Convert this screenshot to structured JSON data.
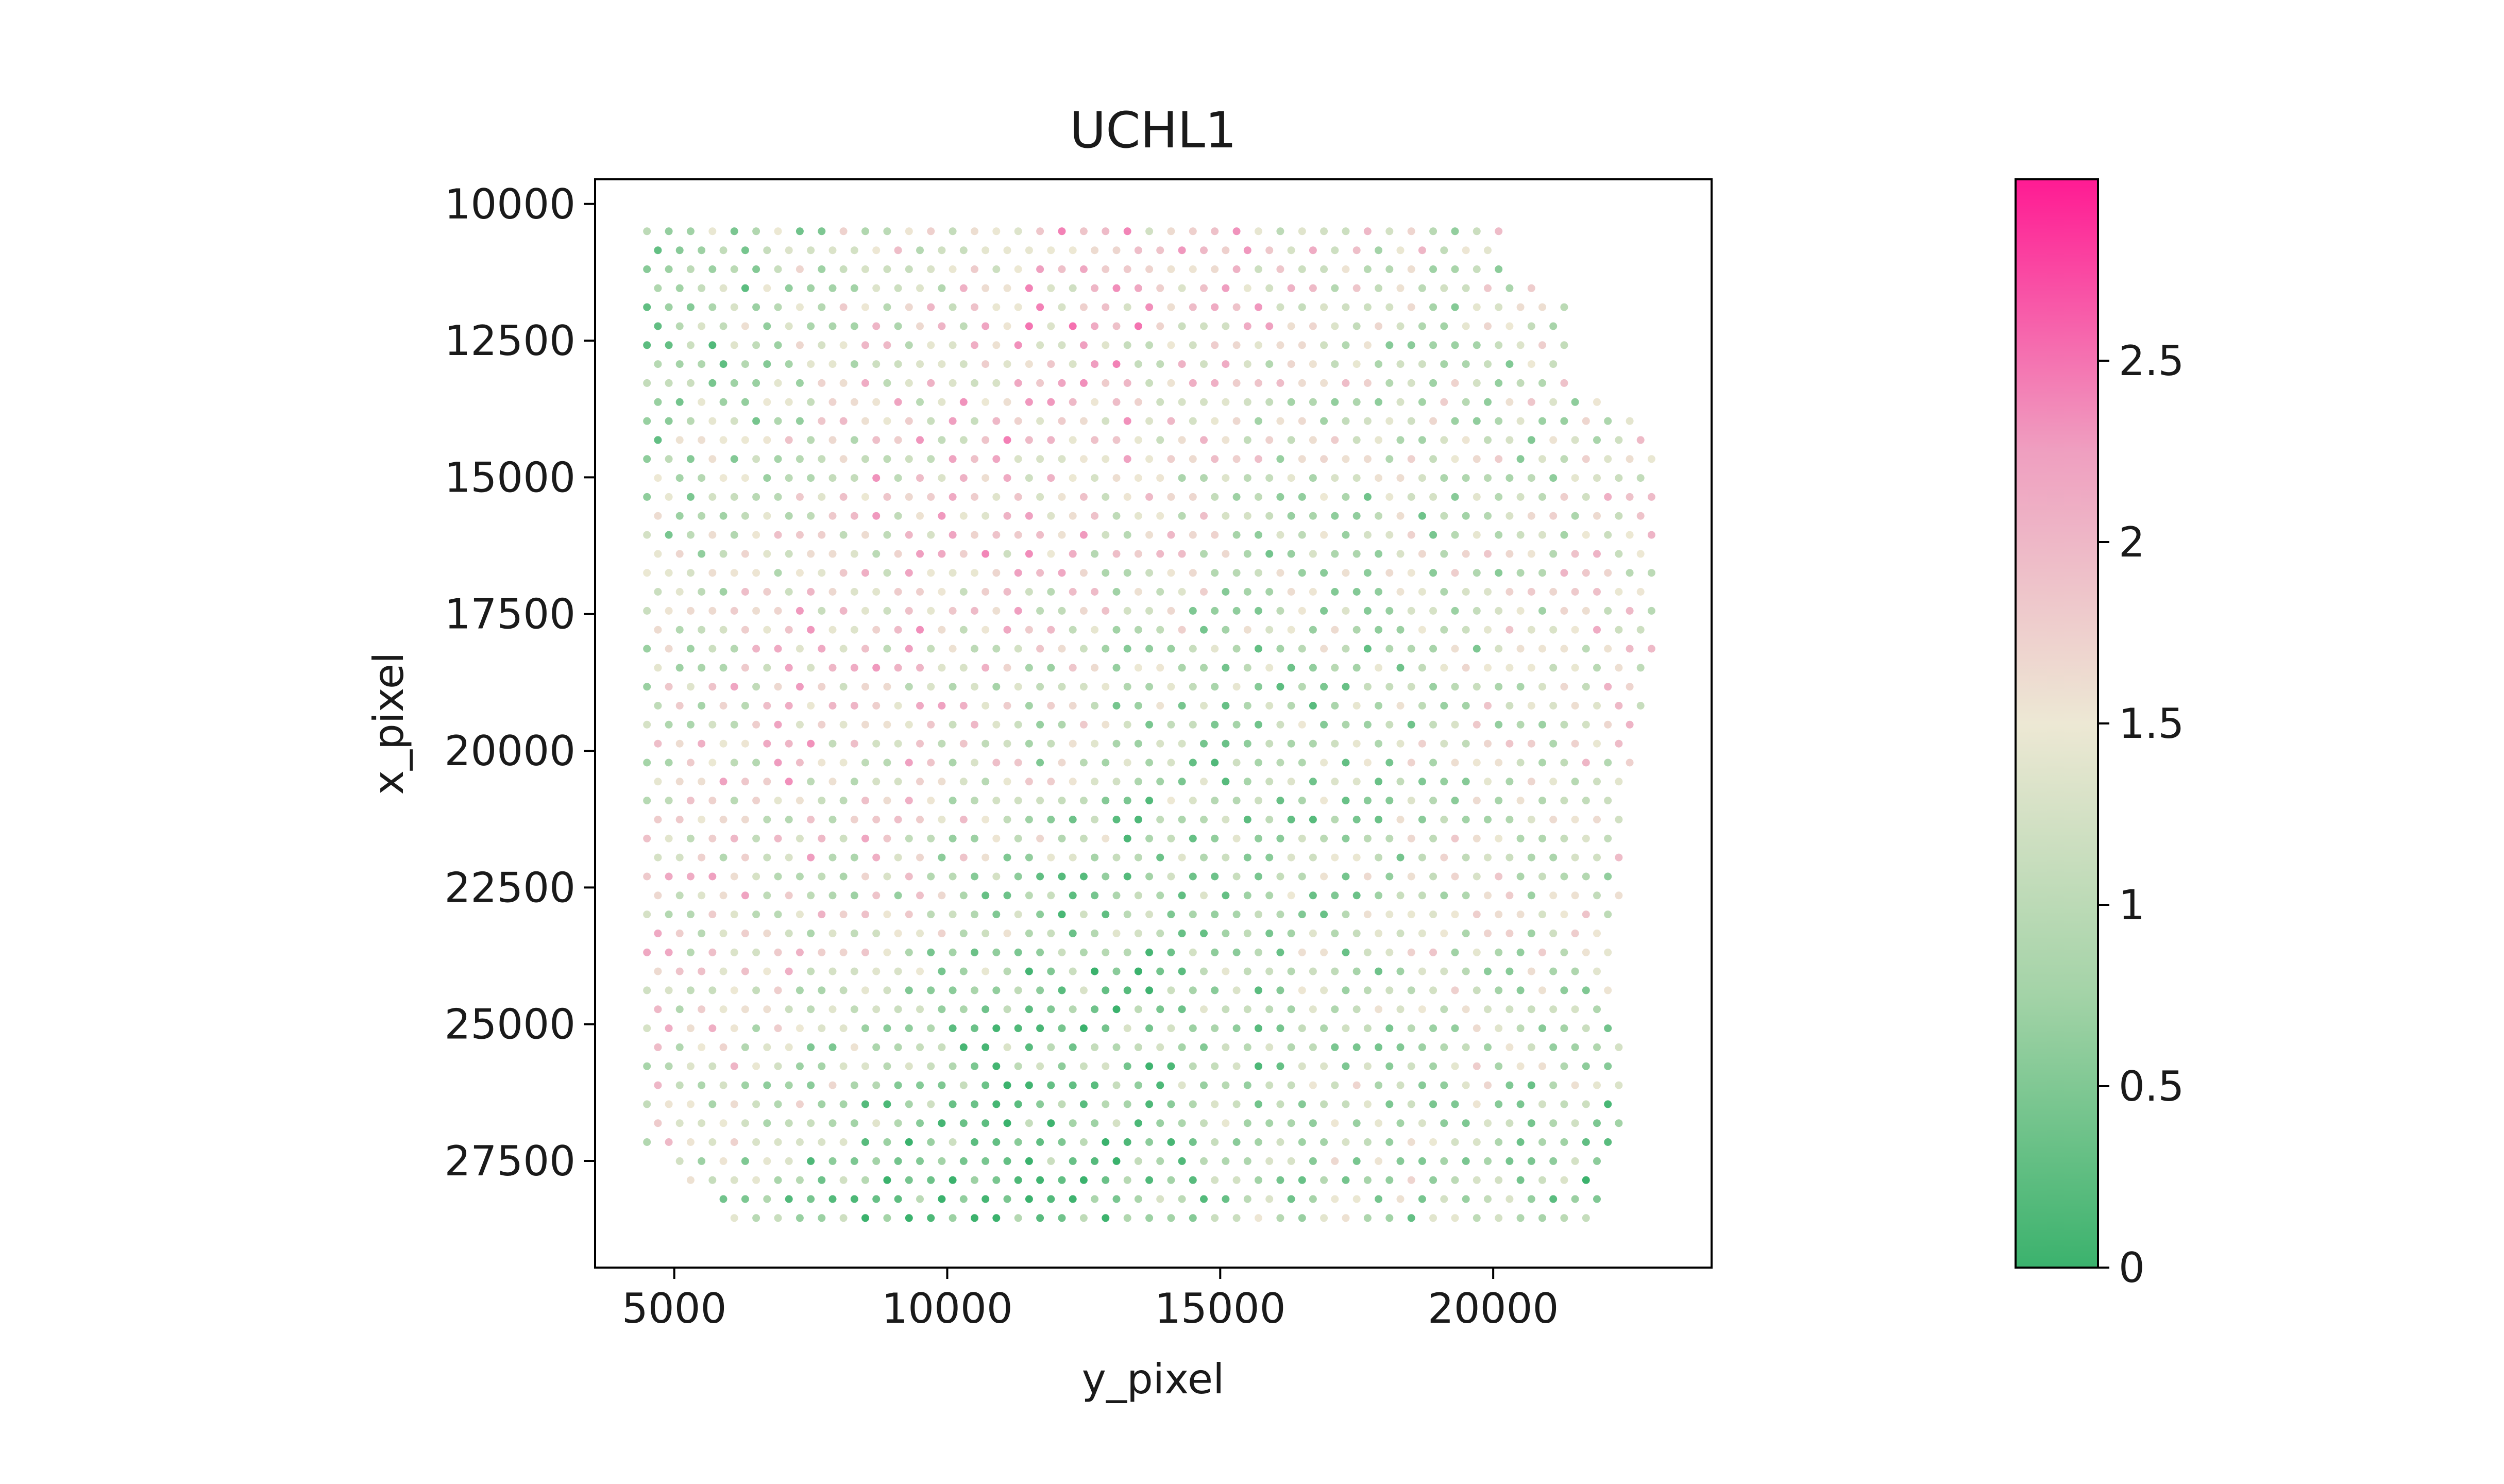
{
  "chart_data": {
    "type": "scatter",
    "title": "UCHL1",
    "xlabel": "y_pixel",
    "ylabel": "x_pixel",
    "xlim": [
      3550,
      24000
    ],
    "ylim": [
      29450,
      9550
    ],
    "y_inverted": true,
    "grid": false,
    "xticks": [
      5000,
      10000,
      15000,
      20000
    ],
    "xtick_labels": [
      "5000",
      "10000",
      "15000",
      "20000"
    ],
    "yticks": [
      10000,
      12500,
      15000,
      17500,
      20000,
      22500,
      25000,
      27500
    ],
    "ytick_labels": [
      "10000",
      "12500",
      "15000",
      "17500",
      "20000",
      "22500",
      "25000",
      "27500"
    ],
    "colorbar": {
      "min": 0,
      "max": 3.0,
      "ticks": [
        0,
        0.5,
        1,
        1.5,
        2,
        2.5
      ],
      "tick_labels": [
        "0",
        "0.5",
        "1",
        "1.5",
        "2",
        "2.5"
      ],
      "colors": [
        "#3bb26d",
        "#a3d3a7",
        "#ede8d4",
        "#ef9fc0",
        "#ff1b93"
      ]
    },
    "spot_grid": {
      "x_min": 4500,
      "x_max": 23000,
      "y_min": 10500,
      "y_max": 28750,
      "x_step": 400,
      "row_step": 347,
      "value_range": [
        0,
        2.9
      ]
    }
  }
}
